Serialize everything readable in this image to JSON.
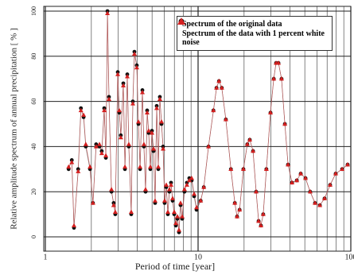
{
  "chart_data": {
    "type": "scatter",
    "xlabel": "Period of time [year]",
    "ylabel": "Relative amplitude spectrum of annual precipitation [ % ]",
    "xscale": "log",
    "xlim": [
      1,
      100
    ],
    "ylim": [
      0,
      100
    ],
    "xticks": [
      1,
      10,
      100
    ],
    "xminorticks": [
      2,
      3,
      4,
      5,
      6,
      7,
      8,
      9,
      20,
      30,
      40,
      50,
      60,
      70,
      80,
      90
    ],
    "yticks": [
      0,
      20,
      40,
      60,
      80,
      100
    ],
    "grid": true,
    "legend": "upper right",
    "x": [
      1.42,
      1.49,
      1.54,
      1.64,
      1.71,
      1.78,
      1.84,
      1.96,
      2.05,
      2.15,
      2.26,
      2.34,
      2.43,
      2.49,
      2.55,
      2.61,
      2.71,
      2.8,
      2.87,
      2.98,
      3.05,
      3.12,
      3.24,
      3.32,
      3.44,
      3.52,
      3.65,
      3.74,
      3.83,
      3.97,
      4.07,
      4.17,
      4.32,
      4.42,
      4.53,
      4.64,
      4.75,
      4.87,
      4.99,
      5.11,
      5.23,
      5.36,
      5.49,
      5.62,
      5.76,
      5.9,
      6.04,
      6.19,
      6.34,
      6.49,
      6.65,
      6.81,
      6.98,
      7.15,
      7.32,
      7.5,
      7.68,
      7.87,
      8.15,
      8.45,
      8.76,
      9.08,
      9.42,
      9.77,
      10.4,
      10.9,
      11.7,
      12.6,
      13.2,
      13.7,
      14.3,
      15.2,
      16.4,
      17.4,
      18.0,
      18.7,
      19.8,
      21.0,
      21.8,
      22.9,
      24.0,
      24.9,
      25.8,
      26.7,
      28.0,
      29.8,
      31.3,
      32.4,
      33.6,
      35.2,
      37.0,
      38.8,
      41.2,
      44.3,
      47.0,
      50.5,
      54.2,
      58.3,
      62.7,
      67.3,
      73.2,
      79.6,
      87.7,
      95.3
    ],
    "series": [
      {
        "name": "Spectrum of the original data",
        "color": "#111111",
        "marker": "circle",
        "values": [
          30,
          34,
          4,
          30,
          57,
          53,
          40,
          30,
          15,
          41,
          40,
          38,
          57,
          35,
          100,
          62,
          20,
          15,
          10,
          73,
          55,
          45,
          68,
          30,
          72,
          40,
          10,
          60,
          82,
          76,
          50,
          30,
          65,
          40,
          20,
          56,
          46,
          30,
          47,
          38,
          15,
          58,
          30,
          62,
          50,
          40,
          15,
          22,
          10,
          20,
          24,
          16,
          10,
          5,
          8,
          2,
          14,
          8,
          20,
          24,
          26,
          25,
          18,
          12,
          16,
          22,
          40,
          56,
          66,
          69,
          66,
          52,
          30,
          15,
          9,
          12,
          30,
          41,
          43,
          38,
          20,
          7,
          5,
          10,
          30,
          55,
          70,
          77,
          77,
          70,
          50,
          32,
          24,
          25,
          28,
          26,
          20,
          15,
          14,
          17,
          23,
          28,
          30,
          32
        ]
      },
      {
        "name": "Spectrum of the data with 1 percent white noise",
        "color": "#d42020",
        "marker": "triangle",
        "values": [
          31,
          33,
          5,
          29,
          56,
          54,
          41,
          31,
          15,
          40,
          41,
          37,
          56,
          36,
          99,
          61,
          21,
          14,
          11,
          72,
          56,
          44,
          67,
          31,
          71,
          41,
          11,
          59,
          81,
          75,
          51,
          31,
          64,
          41,
          21,
          55,
          47,
          31,
          46,
          39,
          16,
          57,
          31,
          61,
          51,
          39,
          16,
          23,
          11,
          21,
          23,
          17,
          11,
          6,
          9,
          3,
          15,
          9,
          21,
          23,
          25,
          26,
          19,
          13,
          16,
          22,
          40,
          56,
          66,
          69,
          66,
          52,
          30,
          15,
          9,
          12,
          30,
          41,
          43,
          38,
          20,
          7,
          5,
          10,
          30,
          55,
          70,
          77,
          77,
          70,
          50,
          32,
          24,
          25,
          28,
          26,
          20,
          15,
          14,
          17,
          23,
          28,
          30,
          32
        ]
      }
    ]
  }
}
